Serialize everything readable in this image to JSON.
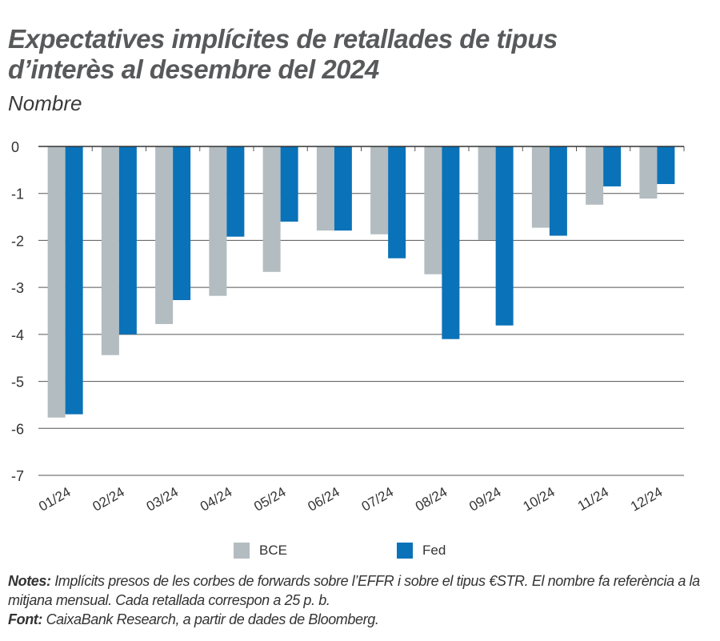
{
  "title_line1": "Expectatives implícites de retallades de tipus",
  "title_line2": "d’interès al desembre del 2024",
  "subtitle": "Nombre",
  "chart_data": {
    "type": "bar",
    "categories": [
      "01/24",
      "02/24",
      "03/24",
      "04/24",
      "05/24",
      "06/24",
      "07/24",
      "08/24",
      "09/24",
      "10/24",
      "11/24",
      "12/24"
    ],
    "series": [
      {
        "name": "BCE",
        "color": "#b3bcc0",
        "values": [
          -5.77,
          -4.44,
          -3.78,
          -3.18,
          -2.67,
          -1.79,
          -1.87,
          -2.72,
          -1.99,
          -1.73,
          -1.24,
          -1.11
        ]
      },
      {
        "name": "Fed",
        "color": "#0a72b8",
        "values": [
          -5.7,
          -4.0,
          -3.27,
          -1.92,
          -1.6,
          -1.79,
          -2.38,
          -4.1,
          -3.81,
          -1.9,
          -0.85,
          -0.8
        ]
      }
    ],
    "ylim": [
      -7,
      0
    ],
    "yticks": [
      "0",
      "-1",
      "-2",
      "-3",
      "-4",
      "-5",
      "-6",
      "-7"
    ],
    "grid": true,
    "legend_position": "bottom"
  },
  "notes_label": "Notes:",
  "notes_text": " Implícits presos de les corbes de forwards sobre l’EFFR i sobre el tipus €STR. El nombre fa referència a la mitjana mensual. Cada retallada correspon a 25 p. b.",
  "source_label": "Font:",
  "source_text": " CaixaBank Research, a partir de dades de Bloomberg."
}
